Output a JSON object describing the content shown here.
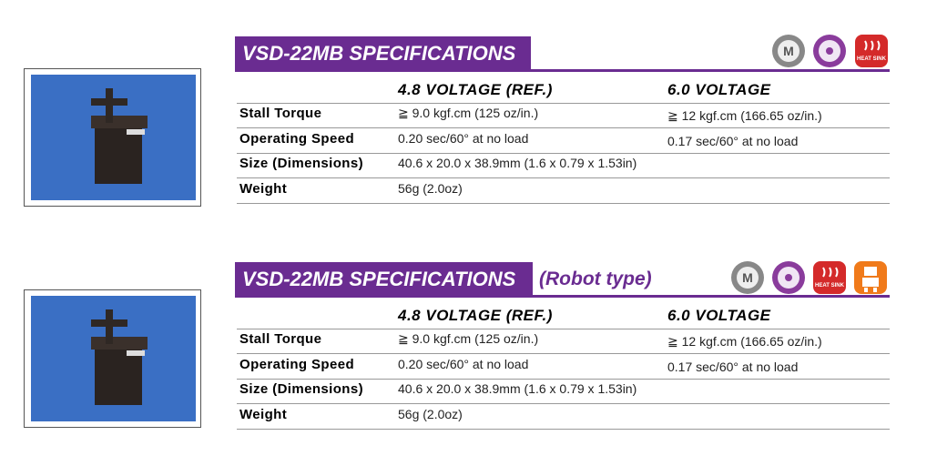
{
  "sections": [
    {
      "title": "VSD-22MB SPECIFICATIONS",
      "icon_labels": [
        "M",
        "HEAT SINK"
      ],
      "columns": [
        "4.8 VOLTAGE (REF.)",
        "6.0 VOLTAGE"
      ],
      "rows": [
        [
          "Stall Torque",
          "≧ 9.0 kgf.cm  (125 oz/in.)",
          "≧ 12 kgf.cm  (166.65 oz/in.)"
        ],
        [
          "Operating Speed",
          "0.20 sec/60° at no load",
          "0.17 sec/60°  at no load"
        ],
        [
          "Size (Dimensions)",
          "40.6 x 20.0 x 38.9mm (1.6 x 0.79 x 1.53in)"
        ],
        [
          "Weight",
          "56g (2.0oz)"
        ]
      ]
    },
    {
      "title": "VSD-22MB  SPECIFICATIONS",
      "subtitle": "(Robot type)",
      "icon_labels": [
        "M",
        "HEAT SINK"
      ],
      "columns": [
        "4.8 VOLTAGE (REF.)",
        "6.0 VOLTAGE"
      ],
      "rows": [
        [
          "Stall Torque",
          "≧ 9.0 kgf.cm  (125 oz/in.)",
          "≧ 12 kgf.cm  (166.65 oz/in.)"
        ],
        [
          "Operating Speed",
          "0.20 sec/60° at no load",
          "0.17 sec/60°  at no load"
        ],
        [
          "Size (Dimensions)",
          "40.6 x 20.0 x 38.9mm (1.6 x 0.79 x 1.53in)"
        ],
        [
          "Weight",
          "56g (2.0oz)"
        ]
      ]
    }
  ]
}
